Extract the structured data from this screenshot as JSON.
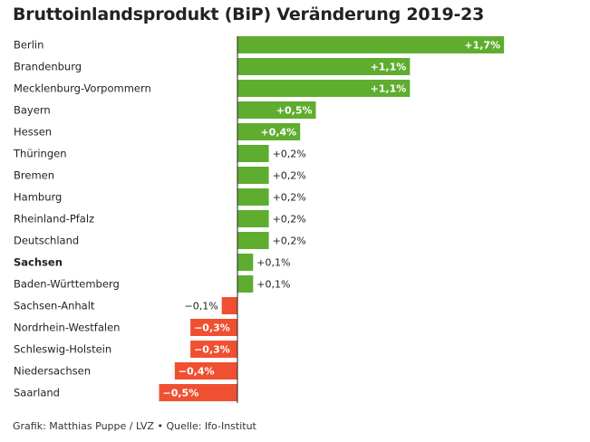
{
  "chart_data": {
    "type": "bar",
    "orientation": "horizontal",
    "title": "Bruttoinlandsprodukt (BiP) Veränderung 2019-23",
    "categories": [
      "Berlin",
      "Brandenburg",
      "Mecklenburg-Vorpommern",
      "Bayern",
      "Hessen",
      "Thüringen",
      "Bremen",
      "Hamburg",
      "Rheinland-Pfalz",
      "Deutschland",
      "Sachsen",
      "Baden-Württemberg",
      "Sachsen-Anhalt",
      "Nordrhein-Westfalen",
      "Schleswig-Holstein",
      "Niedersachsen",
      "Saarland"
    ],
    "values": [
      1.7,
      1.1,
      1.1,
      0.5,
      0.4,
      0.2,
      0.2,
      0.2,
      0.2,
      0.2,
      0.1,
      0.1,
      -0.1,
      -0.3,
      -0.3,
      -0.4,
      -0.5
    ],
    "value_labels": [
      "+1,7%",
      "+1,1%",
      "+1,1%",
      "+0,5%",
      "+0,4%",
      "+0,2%",
      "+0,2%",
      "+0,2%",
      "+0,2%",
      "+0,2%",
      "+0,1%",
      "+0,1%",
      "−0,1%",
      "−0,3%",
      "−0,3%",
      "−0,4%",
      "−0,5%"
    ],
    "highlight": [
      "Sachsen"
    ],
    "xlim": [
      -0.5,
      1.7
    ],
    "positive_color": "#5fad2f",
    "negative_color": "#f05032",
    "xlabel": "",
    "ylabel": ""
  },
  "footer": "Grafik: Matthias Puppe / LVZ • Quelle: Ifo-Institut"
}
